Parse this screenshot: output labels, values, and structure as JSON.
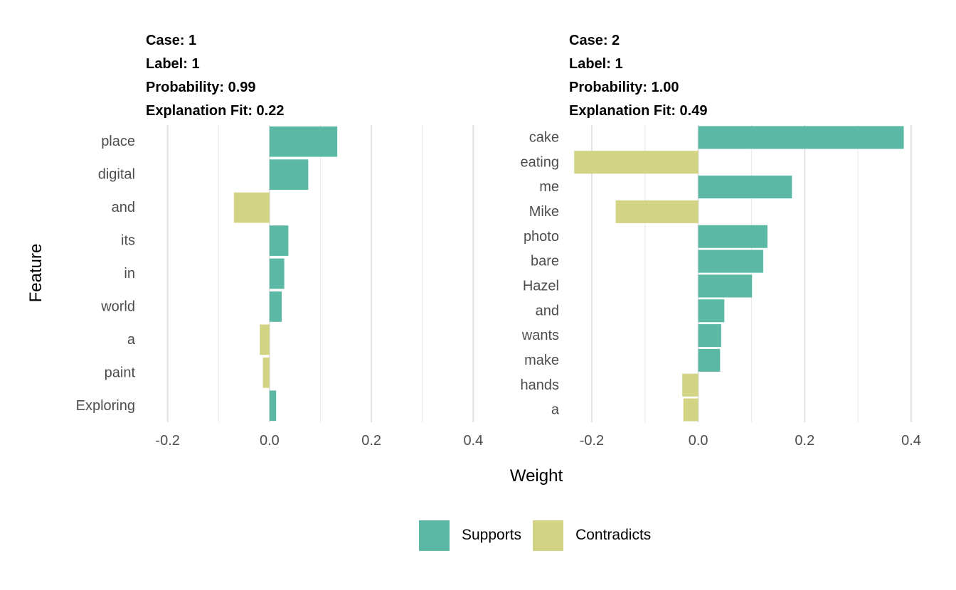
{
  "ylabel": "Feature",
  "xlabel": "Weight",
  "legend": {
    "items": [
      {
        "label": "Supports",
        "color": "#5ab8a5"
      },
      {
        "label": "Contradicts",
        "color": "#d2d483"
      }
    ]
  },
  "chart_data": [
    {
      "type": "bar",
      "orientation": "horizontal",
      "header": [
        "Case: 1",
        "Label: 1",
        "Probability: 0.99",
        "Explanation Fit: 0.22"
      ],
      "categories": [
        "place",
        "digital",
        "and",
        "its",
        "in",
        "world",
        "a",
        "paint",
        "Exploring"
      ],
      "values": [
        0.133,
        0.076,
        -0.07,
        0.037,
        0.029,
        0.024,
        -0.019,
        -0.013,
        0.013
      ],
      "xlim": [
        -0.24,
        0.44
      ],
      "xticks": [
        -0.2,
        0.0,
        0.2,
        0.4
      ],
      "xtick_labels": [
        "-0.2",
        "0.0",
        "0.2",
        "0.4"
      ],
      "grid": true
    },
    {
      "type": "bar",
      "orientation": "horizontal",
      "header": [
        "Case: 2",
        "Label: 1",
        "Probability: 1.00",
        "Explanation Fit: 0.49"
      ],
      "categories": [
        "cake",
        "eating",
        "me",
        "Mike",
        "photo",
        "bare",
        "Hazel",
        "and",
        "wants",
        "make",
        "hands",
        "a"
      ],
      "values": [
        0.386,
        -0.233,
        0.176,
        -0.155,
        0.13,
        0.122,
        0.101,
        0.049,
        0.043,
        0.041,
        -0.03,
        -0.028
      ],
      "xlim": [
        -0.24,
        0.42
      ],
      "xticks": [
        -0.2,
        0.0,
        0.2,
        0.4
      ],
      "xtick_labels": [
        "-0.2",
        "0.0",
        "0.2",
        "0.4"
      ],
      "grid": true
    }
  ]
}
